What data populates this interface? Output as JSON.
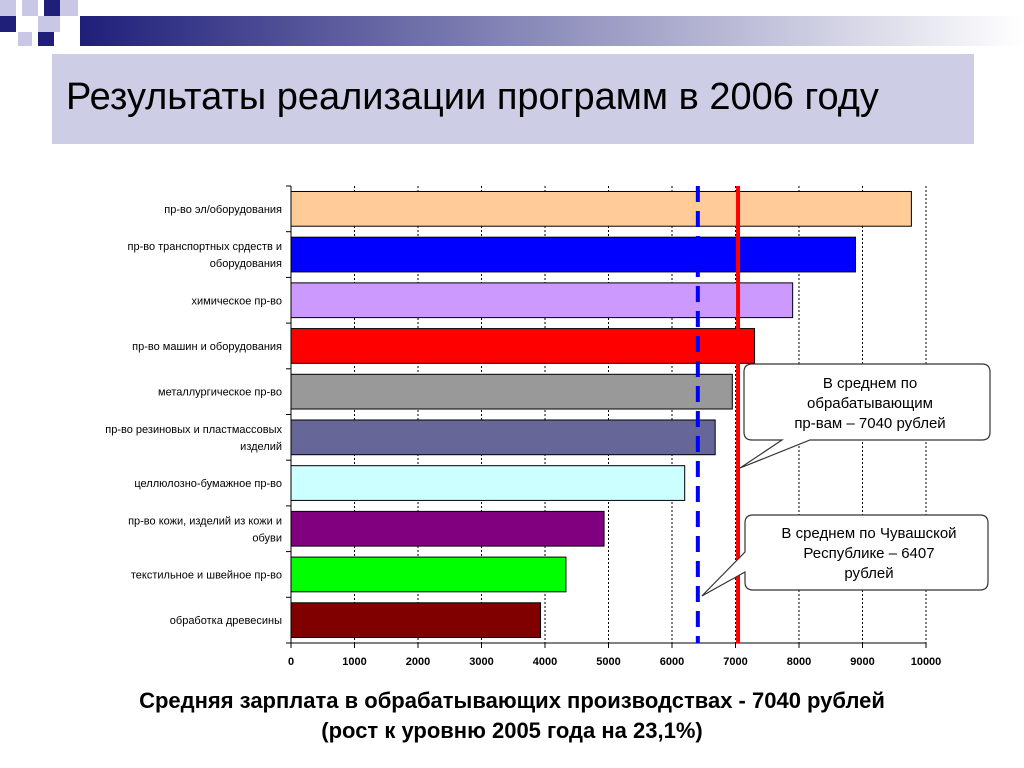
{
  "slide": {
    "title": "Результаты реализации программ в 2006 году",
    "caption_line1": "Средняя зарплата в обрабатывающих производствах - 7040 рублей",
    "caption_line2": "(рост к уровню 2005 года на 23,1%)"
  },
  "chart_data": {
    "type": "bar",
    "orientation": "horizontal",
    "categories": [
      [
        "пр-во эл/оборудования"
      ],
      [
        "пр-во транспортных срдеств и",
        "оборудования"
      ],
      [
        "химическое пр-во"
      ],
      [
        "пр-во машин и оборудования"
      ],
      [
        "металлургическое пр-во"
      ],
      [
        "пр-во резиновых и пластмассовых",
        "изделий"
      ],
      [
        "целлюлозно-бумажное пр-во"
      ],
      [
        "пр-во кожи, изделий из кожи и",
        "обуви"
      ],
      [
        "текстильное и швейное пр-во"
      ],
      [
        "обработка древесины"
      ]
    ],
    "values": [
      9770,
      8890,
      7900,
      7300,
      6950,
      6680,
      6200,
      4930,
      4330,
      3930
    ],
    "bar_colors": [
      "#ffcc99",
      "#0000ff",
      "#cc99ff",
      "#ff0000",
      "#999999",
      "#666699",
      "#ccffff",
      "#800080",
      "#00ff00",
      "#800000"
    ],
    "xlim": [
      0,
      10000
    ],
    "xticks": [
      0,
      1000,
      2000,
      3000,
      4000,
      5000,
      6000,
      7000,
      8000,
      9000,
      10000
    ],
    "grid": "vertical dashed",
    "reference_lines": [
      {
        "value": 7040,
        "color": "#ff0000",
        "style": "solid",
        "label": [
          "В среднем по",
          "обрабатывающим",
          "пр-вам – 7040 рублей"
        ]
      },
      {
        "value": 6407,
        "color": "#0000ff",
        "style": "dashed",
        "label": [
          "В среднем по Чувашской",
          "Республике – 6407",
          "рублей"
        ]
      }
    ]
  }
}
